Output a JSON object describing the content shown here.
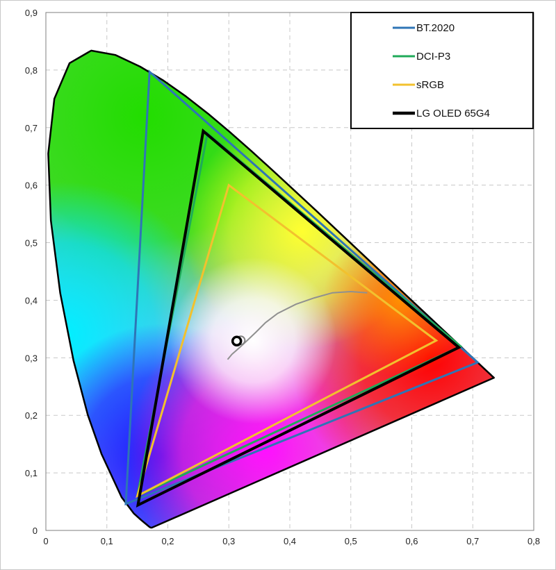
{
  "chart_data": {
    "type": "scatter",
    "title": "",
    "xlabel": "",
    "ylabel": "",
    "xlim": [
      0,
      0.8
    ],
    "ylim": [
      0,
      0.9
    ],
    "grid": true,
    "legend_position": "top-right",
    "x_ticks": [
      "0",
      "0,1",
      "0,2",
      "0,3",
      "0,4",
      "0,5",
      "0,6",
      "0,7",
      "0,8"
    ],
    "y_ticks": [
      "0",
      "0,1",
      "0,2",
      "0,3",
      "0,4",
      "0,5",
      "0,6",
      "0,7",
      "0,8",
      "0,9"
    ],
    "spectral_locus": [
      [
        0.1741,
        0.005
      ],
      [
        0.1738,
        0.0049
      ],
      [
        0.1733,
        0.0048
      ],
      [
        0.1726,
        0.0048
      ],
      [
        0.1714,
        0.0051
      ],
      [
        0.1689,
        0.0069
      ],
      [
        0.1644,
        0.0109
      ],
      [
        0.1566,
        0.0177
      ],
      [
        0.144,
        0.0297
      ],
      [
        0.1241,
        0.0578
      ],
      [
        0.0913,
        0.1327
      ],
      [
        0.0687,
        0.2007
      ],
      [
        0.0454,
        0.295
      ],
      [
        0.0235,
        0.4127
      ],
      [
        0.0082,
        0.5384
      ],
      [
        0.0039,
        0.6548
      ],
      [
        0.0139,
        0.7502
      ],
      [
        0.0389,
        0.812
      ],
      [
        0.0743,
        0.8338
      ],
      [
        0.1142,
        0.8262
      ],
      [
        0.1547,
        0.8059
      ],
      [
        0.1929,
        0.7816
      ],
      [
        0.2296,
        0.7543
      ],
      [
        0.2658,
        0.7243
      ],
      [
        0.3016,
        0.6923
      ],
      [
        0.3373,
        0.6589
      ],
      [
        0.3731,
        0.6245
      ],
      [
        0.4087,
        0.5896
      ],
      [
        0.4441,
        0.5547
      ],
      [
        0.4788,
        0.5202
      ],
      [
        0.5125,
        0.4866
      ],
      [
        0.5448,
        0.4544
      ],
      [
        0.5752,
        0.4242
      ],
      [
        0.6029,
        0.3965
      ],
      [
        0.627,
        0.3725
      ],
      [
        0.6482,
        0.3514
      ],
      [
        0.6658,
        0.334
      ],
      [
        0.6801,
        0.3197
      ],
      [
        0.6915,
        0.3083
      ],
      [
        0.7006,
        0.2993
      ],
      [
        0.7079,
        0.292
      ],
      [
        0.714,
        0.2859
      ],
      [
        0.719,
        0.2809
      ],
      [
        0.723,
        0.277
      ],
      [
        0.726,
        0.274
      ],
      [
        0.7283,
        0.2717
      ],
      [
        0.73,
        0.27
      ],
      [
        0.7311,
        0.2689
      ],
      [
        0.732,
        0.268
      ],
      [
        0.7327,
        0.2673
      ],
      [
        0.7334,
        0.2666
      ],
      [
        0.734,
        0.266
      ],
      [
        0.7344,
        0.2656
      ],
      [
        0.7346,
        0.2654
      ],
      [
        0.7347,
        0.2653
      ]
    ],
    "series": [
      {
        "name": "BT.2020",
        "color": "#2e75b6",
        "points": [
          [
            0.708,
            0.292
          ],
          [
            0.17,
            0.797
          ],
          [
            0.131,
            0.046
          ]
        ]
      },
      {
        "name": "DCI-P3",
        "color": "#1faa59",
        "points": [
          [
            0.68,
            0.32
          ],
          [
            0.265,
            0.69
          ],
          [
            0.15,
            0.06
          ]
        ]
      },
      {
        "name": "sRGB",
        "color": "#f2c12e",
        "points": [
          [
            0.64,
            0.33
          ],
          [
            0.3,
            0.6
          ],
          [
            0.15,
            0.06
          ]
        ]
      },
      {
        "name": "LG OLED 65G4",
        "color": "#000000",
        "points": [
          [
            0.677,
            0.318
          ],
          [
            0.258,
            0.694
          ],
          [
            0.151,
            0.044
          ]
        ]
      }
    ],
    "planckian_locus": {
      "color": "#909090",
      "points": [
        [
          0.527,
          0.413
        ],
        [
          0.5,
          0.415
        ],
        [
          0.47,
          0.413
        ],
        [
          0.44,
          0.404
        ],
        [
          0.41,
          0.393
        ],
        [
          0.38,
          0.377
        ],
        [
          0.36,
          0.361
        ],
        [
          0.345,
          0.345
        ],
        [
          0.33,
          0.33
        ],
        [
          0.318,
          0.318
        ],
        [
          0.305,
          0.306
        ],
        [
          0.298,
          0.297
        ]
      ]
    },
    "white_point": {
      "x": 0.3127,
      "y": 0.329
    },
    "measured_white": {
      "x": 0.313,
      "y": 0.329
    }
  }
}
